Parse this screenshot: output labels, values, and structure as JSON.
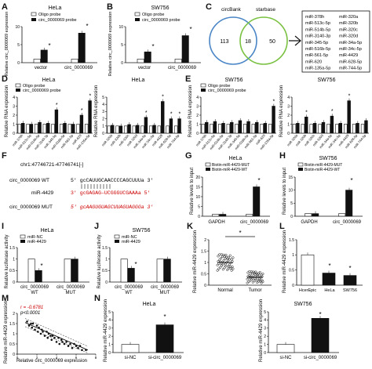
{
  "panel_letters": [
    "A",
    "B",
    "C",
    "D",
    "E",
    "F",
    "G",
    "H",
    "I",
    "J",
    "K",
    "L",
    "M",
    "N"
  ],
  "colors": {
    "black": "#111111",
    "white": "#ffffff",
    "red": "#cc0000",
    "venn_left": "#4a86c5",
    "venn_right": "#7ac142"
  },
  "panelA": {
    "title": "HeLa",
    "legend": [
      "Oligo probe",
      "circ_0000069 probe"
    ],
    "ylabel": "Relative circ_0000069 expression",
    "categories": [
      "vector",
      "circ_0000069"
    ],
    "star": "*"
  },
  "panelB": {
    "title": "SW756",
    "legend": [
      "Oligo probe",
      "circ_0000069 probe"
    ],
    "ylabel": "Relative circ_0000069 expression",
    "categories": [
      "vector",
      "circ_0000069"
    ],
    "star": "*"
  },
  "panelC": {
    "left_label": "circBank",
    "right_label": "starbase",
    "counts": [
      "113",
      "18",
      "50"
    ],
    "mirna_col1": [
      "miR-378h",
      "miR-513c-5p",
      "miR-514b-5p",
      "miR-3140-3p",
      "miR-345-5p",
      "miR-516b-5p",
      "miR-561-5p",
      "miR-620",
      "miR-135a-5p"
    ],
    "mirna_col2": [
      "miR-320a",
      "miR-320b",
      "miR-320c",
      "miR-320d",
      "miR-34a-5p",
      "miR-34c-5p",
      "miR-4429",
      "miR-628-5p",
      "miR-744-5p"
    ]
  },
  "panelD": {
    "title": "HeLa",
    "legend": [
      "Oligo probe",
      "circ_0000069 probe"
    ],
    "ylabel": "Relative RNA expression",
    "star": "*"
  },
  "panelE": {
    "title": "SW756",
    "legend": [
      "Oligo probe",
      "circ_0000069 probe"
    ],
    "ylabel": "Relative RNA expression",
    "star": "*"
  },
  "panelF": {
    "header": "chr1:47746721-47746741[-]",
    "wt_label": "circ_0000069 WT",
    "wt_seq": "5' gcCAUUGCAACCCCAGCUUUa 3'",
    "mir_label": "miR-4429",
    "mir_seq": "3' gcGAGAG–UCGGGUCGAAAa 5'",
    "mut_label": "circ_0000069 MUT",
    "mut_seq": "5' gcAAGUGUAGCUUAGUAGGGa 3'"
  },
  "panelG": {
    "title": "HeLa",
    "legend": [
      "Biotin-miR-4429-MUT",
      "Biotin-miR-4429-WT"
    ],
    "ylabel": "Relative levels to input",
    "categories": [
      "GAPDH",
      "circ_0000069"
    ],
    "star": "*"
  },
  "panelH": {
    "title": "SW756",
    "legend": [
      "Biotin-miR-4429-MUT",
      "Biotin-miR-4429-WT"
    ],
    "ylabel": "Relative levels to input",
    "categories": [
      "GAPDH",
      "circ_0000069"
    ],
    "star": "*"
  },
  "panelI": {
    "title": "HeLa",
    "legend": [
      "miR-NC",
      "miR-4429"
    ],
    "ylabel": "Relative luciferase activity",
    "groups": [
      "circ_0000069",
      "circ_0000069"
    ],
    "subgroups": [
      "WT",
      "MUT"
    ],
    "star": "*"
  },
  "panelJ": {
    "title": "SW756",
    "legend": [
      "miR-NC",
      "miR-4429"
    ],
    "ylabel": "Relative luciferase activity",
    "groups": [
      "circ_0000069",
      "circ_0000069"
    ],
    "subgroups": [
      "WT",
      "MUT"
    ],
    "star": "*"
  },
  "panelK": {
    "ylabel": "Relative miR-4429 expression",
    "categories": [
      "Normal",
      "Tumor"
    ],
    "star": "*"
  },
  "panelL": {
    "ylabel": "Relative miR-4429 expression",
    "categories": [
      "HcerEpic",
      "HeLa",
      "SW756"
    ],
    "stars": [
      "*",
      "*"
    ]
  },
  "panelM": {
    "r_text": "r = -0.6781",
    "p_text": "p<0.0001",
    "xlabel": "Relative circ_0000069 expression",
    "ylabel": "Relative miR-4429 expression"
  },
  "panelN": {
    "left_title": "HeLa",
    "right_title": "SW756",
    "ylabel": "Relative miR-4429 expression",
    "categories": [
      "si-NC",
      "si-circ_0000069"
    ],
    "star": "*"
  },
  "chart_data": [
    {
      "panel": "A",
      "type": "bar",
      "title": "HeLa",
      "categories": [
        "vector",
        "circ_0000069"
      ],
      "series": [
        {
          "name": "Oligo probe",
          "values": [
            1.0,
            1.0
          ]
        },
        {
          "name": "circ_0000069 probe",
          "values": [
            3.5,
            8.2
          ]
        }
      ],
      "ylim": [
        0,
        10
      ]
    },
    {
      "panel": "B",
      "type": "bar",
      "title": "SW756",
      "categories": [
        "vector",
        "circ_0000069"
      ],
      "series": [
        {
          "name": "Oligo probe",
          "values": [
            1.0,
            1.0
          ]
        },
        {
          "name": "circ_0000069 probe",
          "values": [
            3.0,
            7.5
          ]
        }
      ],
      "ylim": [
        0,
        10
      ]
    },
    {
      "panel": "D",
      "type": "bar",
      "title": "HeLa",
      "categories": [
        "miR-378h",
        "miR-513c-5p",
        "miR-514b-5p",
        "miR-3140-3p",
        "miR-345-5p",
        "miR-516b-5p",
        "miR-561-5p",
        "miR-620",
        "miR-135a-5p"
      ],
      "series": [
        {
          "name": "Oligo probe",
          "values": [
            1,
            1,
            1,
            1,
            1,
            1,
            1,
            1,
            1
          ]
        },
        {
          "name": "circ_0000069 probe",
          "values": [
            1.1,
            1.0,
            1.2,
            1.1,
            2.6,
            1.1,
            1.0,
            2.0,
            3.6
          ]
        }
      ],
      "ylim": [
        0,
        4
      ]
    },
    {
      "panel": "D2",
      "type": "bar",
      "title": "HeLa",
      "categories": [
        "miR-320a",
        "miR-320b",
        "miR-320c",
        "miR-320d",
        "miR-34a-5p",
        "miR-34c-5p",
        "miR-4429",
        "miR-628-5p",
        "miR-744-5p"
      ],
      "series": [
        {
          "name": "Oligo probe",
          "values": [
            1,
            1,
            1,
            1,
            1,
            1,
            1,
            1,
            1
          ]
        },
        {
          "name": "circ_0000069 probe",
          "values": [
            1.1,
            1.0,
            1.2,
            1.1,
            2.2,
            1.1,
            4.4,
            2.0,
            2.0
          ]
        }
      ],
      "ylim": [
        0,
        5
      ]
    },
    {
      "panel": "E",
      "type": "bar",
      "title": "SW756",
      "categories": [
        "miR-378h",
        "miR-513c-5p",
        "miR-514b-5p",
        "miR-3140-3p",
        "miR-345-5p",
        "miR-516b-5p",
        "miR-561-5p",
        "miR-620",
        "miR-135a-5p"
      ],
      "series": [
        {
          "name": "Oligo probe",
          "values": [
            1,
            1,
            1,
            1,
            1,
            1,
            1,
            1,
            1
          ]
        },
        {
          "name": "circ_0000069 probe",
          "values": [
            1.2,
            1.3,
            1.1,
            1.2,
            1.4,
            1.3,
            1.2,
            1.1,
            3.0
          ]
        }
      ],
      "ylim": [
        0,
        4
      ]
    },
    {
      "panel": "E2",
      "type": "bar",
      "title": "SW756",
      "categories": [
        "miR-320a",
        "miR-320b",
        "miR-320c",
        "miR-320d",
        "miR-34a-5p",
        "miR-34c-5p",
        "miR-4429",
        "miR-628-5p",
        "miR-744-5p"
      ],
      "series": [
        {
          "name": "Oligo probe",
          "values": [
            1,
            1,
            1,
            1,
            1,
            1,
            1,
            1,
            1
          ]
        },
        {
          "name": "circ_0000069 probe",
          "values": [
            1.1,
            1.8,
            1.1,
            1.2,
            1.9,
            1.1,
            3.6,
            1.1,
            1.4
          ]
        }
      ],
      "ylim": [
        0,
        4
      ]
    },
    {
      "panel": "G",
      "type": "bar",
      "title": "HeLa",
      "categories": [
        "GAPDH",
        "circ_0000069"
      ],
      "series": [
        {
          "name": "Biotin-miR-4429-MUT",
          "values": [
            1.0,
            1.0
          ]
        },
        {
          "name": "Biotin-miR-4429-WT",
          "values": [
            1.0,
            15.0
          ]
        }
      ],
      "ylim": [
        0,
        20
      ]
    },
    {
      "panel": "H",
      "type": "bar",
      "title": "SW756",
      "categories": [
        "GAPDH",
        "circ_0000069"
      ],
      "series": [
        {
          "name": "Biotin-miR-4429-MUT",
          "values": [
            1.0,
            1.0
          ]
        },
        {
          "name": "Biotin-miR-4429-WT",
          "values": [
            1.0,
            10.0
          ]
        }
      ],
      "ylim": [
        0,
        15
      ]
    },
    {
      "panel": "I",
      "type": "bar",
      "title": "HeLa",
      "categories": [
        "circ_0000069 WT",
        "circ_0000069 MUT"
      ],
      "series": [
        {
          "name": "miR-NC",
          "values": [
            1.0,
            1.0
          ]
        },
        {
          "name": "miR-4429",
          "values": [
            0.5,
            1.0
          ]
        }
      ],
      "ylim": [
        0,
        1.5
      ]
    },
    {
      "panel": "J",
      "type": "bar",
      "title": "SW756",
      "categories": [
        "circ_0000069 WT",
        "circ_0000069 MUT"
      ],
      "series": [
        {
          "name": "miR-NC",
          "values": [
            1.0,
            1.0
          ]
        },
        {
          "name": "miR-4429",
          "values": [
            0.6,
            1.0
          ]
        }
      ],
      "ylim": [
        0,
        1.5
      ]
    },
    {
      "panel": "K",
      "type": "scatter",
      "categories": [
        "Normal",
        "Tumor"
      ],
      "means": [
        1.0,
        0.35
      ],
      "ylim": [
        0,
        2
      ]
    },
    {
      "panel": "L",
      "type": "bar",
      "categories": [
        "HcerEpic",
        "HeLa",
        "SW756"
      ],
      "values": [
        1.0,
        0.4,
        0.32
      ],
      "ylim": [
        0,
        1.5
      ]
    },
    {
      "panel": "M",
      "type": "scatter",
      "xlim": [
        0,
        8
      ],
      "ylim": [
        0,
        2
      ],
      "x": [
        1.0,
        1.2,
        1.4,
        1.5,
        1.6,
        1.8,
        2.0,
        2.1,
        2.2,
        2.4,
        2.5,
        2.6,
        2.8,
        3.0,
        3.1,
        3.2,
        3.4,
        3.5,
        3.6,
        3.8,
        4.0,
        4.2,
        4.3,
        4.5,
        4.6,
        4.8,
        5.0,
        5.2,
        5.4,
        5.6,
        5.8,
        6.0,
        6.2,
        6.4,
        6.6,
        7.0
      ],
      "y": [
        1.6,
        1.4,
        1.5,
        1.3,
        1.5,
        1.2,
        1.4,
        1.1,
        1.3,
        1.0,
        1.2,
        1.1,
        0.9,
        1.1,
        0.8,
        1.0,
        0.9,
        0.7,
        0.9,
        0.8,
        0.6,
        0.8,
        0.5,
        0.7,
        0.6,
        0.5,
        0.6,
        0.4,
        0.5,
        0.3,
        0.5,
        0.4,
        0.3,
        0.4,
        0.2,
        0.2
      ]
    },
    {
      "panel": "N1",
      "type": "bar",
      "title": "HeLa",
      "categories": [
        "si-NC",
        "si-circ_0000069"
      ],
      "values": [
        1.0,
        3.4
      ],
      "ylim": [
        0,
        5
      ]
    },
    {
      "panel": "N2",
      "type": "bar",
      "title": "SW756",
      "categories": [
        "si-NC",
        "si-circ_0000069"
      ],
      "values": [
        1.0,
        4.2
      ],
      "ylim": [
        0,
        5
      ]
    }
  ]
}
